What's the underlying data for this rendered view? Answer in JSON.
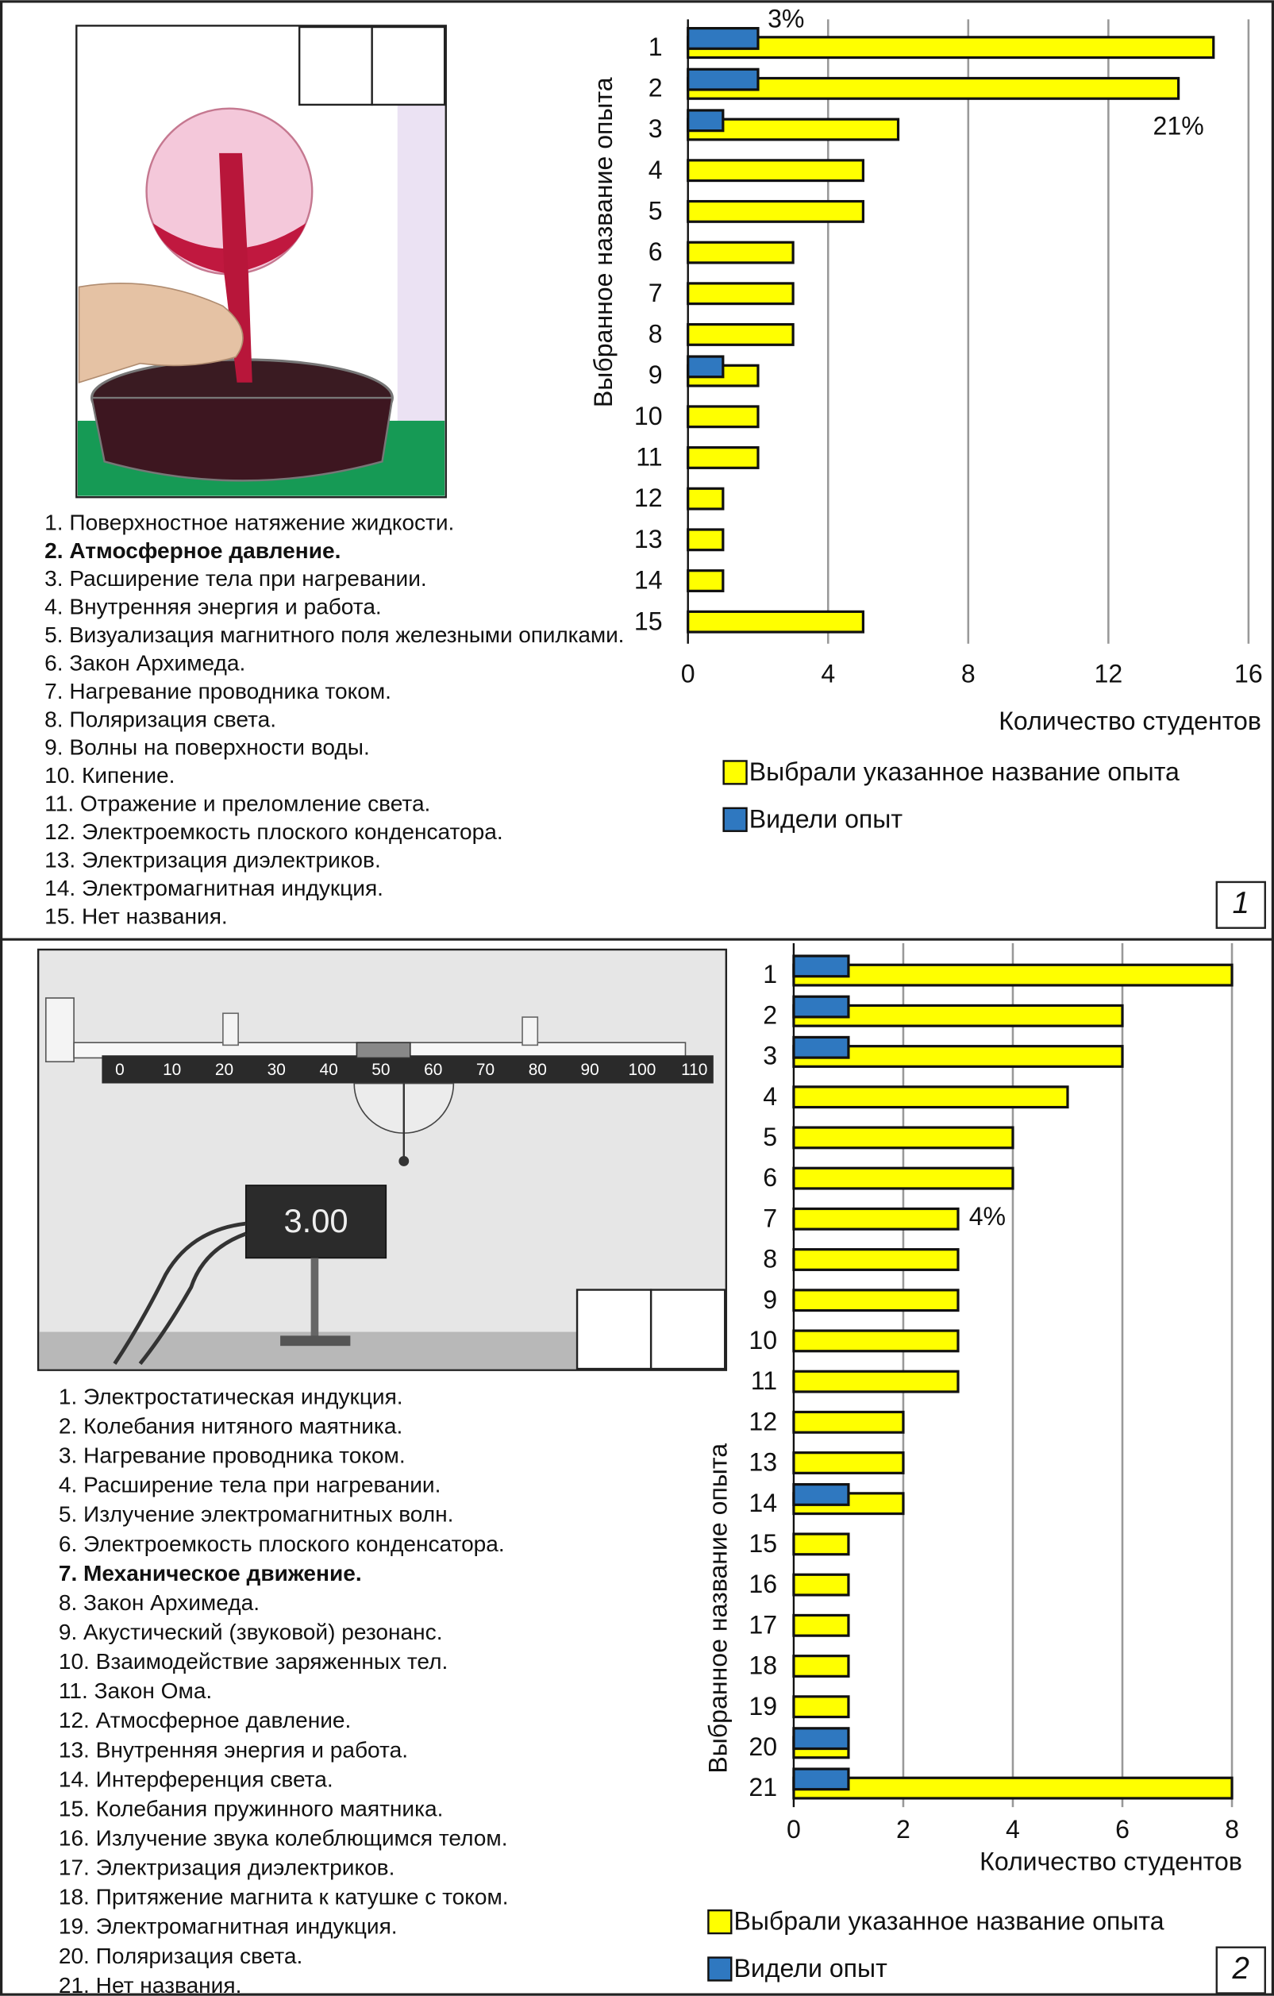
{
  "chart_data": [
    {
      "type": "bar",
      "orientation": "horizontal",
      "categories": [
        "1",
        "2",
        "3",
        "4",
        "5",
        "6",
        "7",
        "8",
        "9",
        "10",
        "11",
        "12",
        "13",
        "14",
        "15"
      ],
      "series": [
        {
          "name": "Выбрали указанное название опыта",
          "color": "#ffff00",
          "values": [
            15,
            14,
            6,
            5,
            5,
            3,
            3,
            3,
            2,
            2,
            2,
            1,
            1,
            1,
            5
          ]
        },
        {
          "name": "Видели опыт",
          "color": "#2f78c0",
          "values": [
            2,
            2,
            1,
            0,
            0,
            0,
            0,
            0,
            1,
            0,
            0,
            0,
            0,
            0,
            0
          ]
        }
      ],
      "xlim": [
        0,
        16
      ],
      "xticks": [
        0,
        4,
        8,
        12,
        16
      ],
      "grid": true,
      "xlabel": "Количество студентов",
      "ylabel": "Выбранное название опыта",
      "annotations": [
        "3%",
        "21%"
      ]
    },
    {
      "type": "bar",
      "orientation": "horizontal",
      "categories": [
        "1",
        "2",
        "3",
        "4",
        "5",
        "6",
        "7",
        "8",
        "9",
        "10",
        "11",
        "12",
        "13",
        "14",
        "15",
        "16",
        "17",
        "18",
        "19",
        "20",
        "21"
      ],
      "series": [
        {
          "name": "Выбрали указанное название опыта",
          "color": "#ffff00",
          "values": [
            8,
            6,
            6,
            5,
            4,
            4,
            3,
            3,
            3,
            3,
            3,
            2,
            2,
            2,
            1,
            1,
            1,
            1,
            1,
            1,
            8
          ]
        },
        {
          "name": "Видели опыт",
          "color": "#2f78c0",
          "values": [
            1,
            1,
            1,
            0,
            0,
            0,
            0,
            0,
            0,
            0,
            0,
            0,
            0,
            1,
            0,
            0,
            0,
            0,
            0,
            1,
            1
          ]
        }
      ],
      "xlim": [
        0,
        8
      ],
      "xticks": [
        0,
        2,
        4,
        6,
        8
      ],
      "grid": true,
      "xlabel": "Количество студентов",
      "ylabel": "Выбранное название опыта",
      "annotations": [
        "4%"
      ]
    }
  ],
  "panels": [
    {
      "label": "1",
      "bold": [
        1
      ],
      "items": [
        "1. Поверхностное натяжение жидкости.",
        "2. Атмосферное давление.",
        "3. Расширение тела при нагревании.",
        "4. Внутренняя энергия и работа.",
        "5. Визуализация магнитного поля железными опилками.",
        "6. Закон Архимеда.",
        "7. Нагревание проводника током.",
        "8. Поляризация света.",
        "9. Волны на поверхности воды.",
        "10. Кипение.",
        "11. Отражение и преломление света.",
        "12. Электроемкость плоского конденсатора.",
        "13. Электризация диэлектриков.",
        "14. Электромагнитная индукция.",
        "15. Нет названия."
      ]
    },
    {
      "label": "2",
      "bold": [
        6
      ],
      "items": [
        "1. Электростатическая индукция.",
        "2. Колебания нитяного маятника.",
        "3. Нагревание проводника током.",
        "4. Расширение тела при нагревании.",
        "5. Излучение электромагнитных волн.",
        "6. Электроемкость плоского конденсатора.",
        "7. Механическое движение.",
        "8. Закон Архимеда.",
        "9. Акустический (звуковой) резонанс.",
        "10. Взаимодействие заряженных тел.",
        "11. Закон Ома.",
        "12. Атмосферное давление.",
        "13. Внутренняя энергия и работа.",
        "14. Интерференция света.",
        "15. Колебания пружинного маятника.",
        "16. Излучение звука колеблющимся телом.",
        "17. Электризация диэлектриков.",
        "18. Притяжение магнита к катушке с током.",
        "19. Электромагнитная индукция.",
        "20. Поляризация света.",
        "21. Нет названия."
      ]
    }
  ],
  "photo": {
    "display": "3.00",
    "ruler": [
      "0",
      "10",
      "20",
      "30",
      "40",
      "50",
      "60",
      "70",
      "80",
      "90",
      "100",
      "110"
    ]
  }
}
